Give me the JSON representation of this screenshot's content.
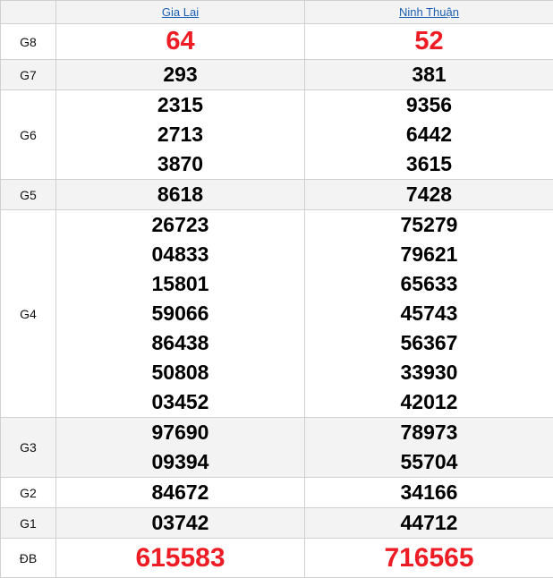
{
  "header": {
    "provinces": [
      "Gia Lai",
      "Ninh Thuận"
    ]
  },
  "colors": {
    "special": "#ee1c25",
    "link": "#1a5fb4",
    "row_alt": "#f3f3f3"
  },
  "prizes": [
    {
      "label": "G8",
      "values": [
        [
          "64"
        ],
        [
          "52"
        ]
      ]
    },
    {
      "label": "G7",
      "values": [
        [
          "293"
        ],
        [
          "381"
        ]
      ]
    },
    {
      "label": "G6",
      "values": [
        [
          "2315",
          "2713",
          "3870"
        ],
        [
          "9356",
          "6442",
          "3615"
        ]
      ]
    },
    {
      "label": "G5",
      "values": [
        [
          "8618"
        ],
        [
          "7428"
        ]
      ]
    },
    {
      "label": "G4",
      "values": [
        [
          "26723",
          "04833",
          "15801",
          "59066",
          "86438",
          "50808",
          "03452"
        ],
        [
          "75279",
          "79621",
          "65633",
          "45743",
          "56367",
          "33930",
          "42012"
        ]
      ]
    },
    {
      "label": "G3",
      "values": [
        [
          "97690",
          "09394"
        ],
        [
          "78973",
          "55704"
        ]
      ]
    },
    {
      "label": "G2",
      "values": [
        [
          "84672"
        ],
        [
          "34166"
        ]
      ]
    },
    {
      "label": "G1",
      "values": [
        [
          "03742"
        ],
        [
          "44712"
        ]
      ]
    },
    {
      "label": "ĐB",
      "values": [
        [
          "615583"
        ],
        [
          "716565"
        ]
      ]
    }
  ]
}
